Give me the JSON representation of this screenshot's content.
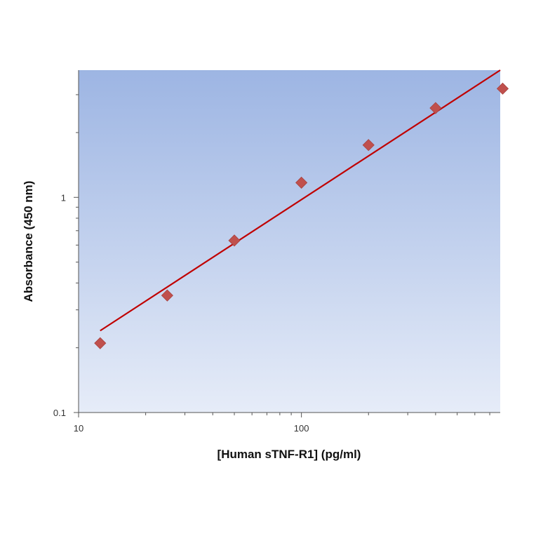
{
  "chart_data": {
    "type": "scatter",
    "title": "",
    "xlabel": "[Human sTNF-R1] (pg/ml)",
    "ylabel": "Absorbance (450 nm)",
    "x_scale": "log",
    "y_scale": "log",
    "xlim": [
      10,
      780
    ],
    "ylim": [
      0.1,
      3.9
    ],
    "x_tick_labels": [
      {
        "value": 10,
        "label": "10"
      },
      {
        "value": 100,
        "label": "100"
      }
    ],
    "y_tick_labels": [
      {
        "value": 0.1,
        "label": "0.1"
      },
      {
        "value": 1,
        "label": "1"
      }
    ],
    "grid": false,
    "series": [
      {
        "marker": "diamond",
        "color": "#c0504d",
        "points": [
          {
            "x": 12.5,
            "y": 0.21
          },
          {
            "x": 25,
            "y": 0.35
          },
          {
            "x": 50,
            "y": 0.63
          },
          {
            "x": 100,
            "y": 1.17
          },
          {
            "x": 200,
            "y": 1.75
          },
          {
            "x": 400,
            "y": 2.6
          },
          {
            "x": 800,
            "y": 3.2
          }
        ]
      }
    ],
    "fit_line": {
      "color": "#c00000",
      "points": [
        {
          "x": 12.5,
          "y": 0.24
        },
        {
          "x": 780,
          "y": 3.9
        }
      ]
    },
    "background_gradient": [
      "#9db5e3",
      "#e6ecf8"
    ]
  }
}
